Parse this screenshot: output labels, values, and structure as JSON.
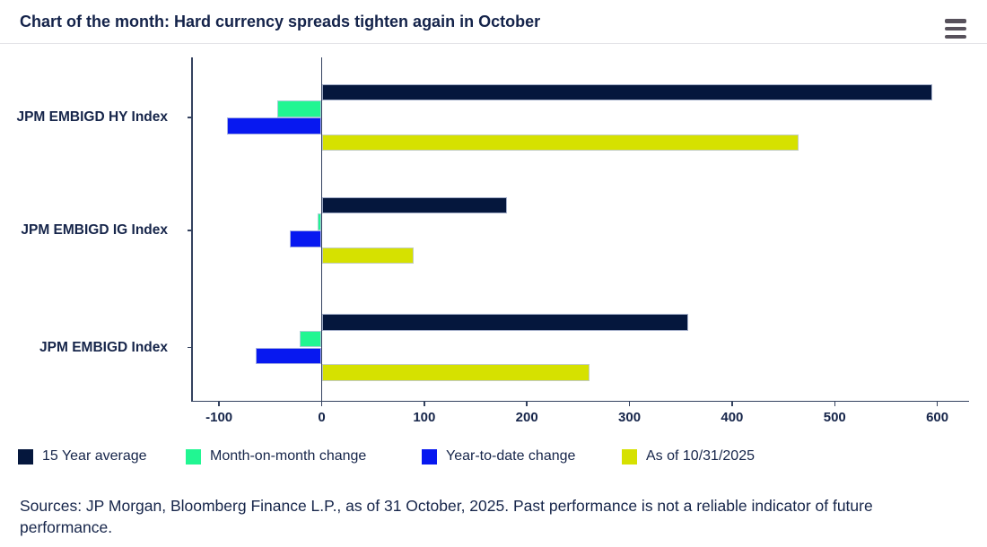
{
  "header": {
    "title": "Chart of the month: Hard currency spreads tighten again in October"
  },
  "chart_data": {
    "type": "bar",
    "orientation": "horizontal",
    "title": "Chart of the month: Hard currency spreads tighten again in October",
    "categories": [
      "JPM EMBIGD HY Index",
      "JPM EMBIGD IG Index",
      "JPM EMBIGD Index"
    ],
    "series": [
      {
        "name": "15 Year average",
        "color": "#05173d",
        "values": [
          595,
          181,
          357
        ]
      },
      {
        "name": "Month-on-month change",
        "color": "#21f692",
        "values": [
          -43,
          -4,
          -21
        ]
      },
      {
        "name": "Year-to-date change",
        "color": "#0718f0",
        "values": [
          -92,
          -31,
          -64
        ]
      },
      {
        "name": "As of 10/31/2025",
        "color": "#d6e100",
        "values": [
          465,
          90,
          261
        ]
      }
    ],
    "x_ticks": [
      -100,
      0,
      100,
      200,
      300,
      400,
      500,
      600
    ],
    "xlim": [
      -127,
      631
    ],
    "xlabel": "",
    "ylabel": "",
    "grid": false,
    "legend_position": "bottom"
  },
  "footer": {
    "sources": "Sources: JP Morgan, Bloomberg Finance L.P., as of 31 October, 2025. Past performance is not a reliable indicator of future performance."
  }
}
